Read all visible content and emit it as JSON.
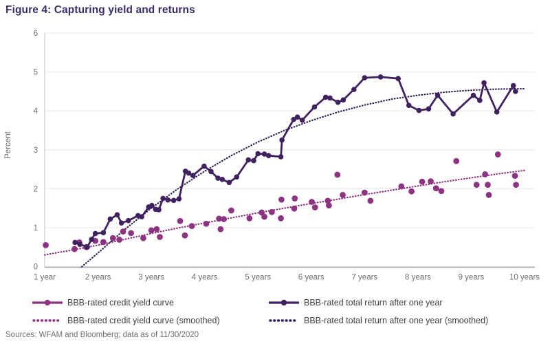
{
  "title": "Figure 4: Capturing yield and returns",
  "source": "Sources: WFAM and Bloomberg; data as of 11/30/2020",
  "colors": {
    "title": "#3b2b6b",
    "yield": "#8e3282",
    "total_return": "#40215f",
    "total_return_smoothed": "#2f1b58",
    "grid": "#e8e8e8",
    "axis_bottom": "#b3b3b3",
    "axis_left": "#d4d4d4",
    "tick_text": "#6e6e6e"
  },
  "chart_data": {
    "type": "scatter",
    "title": "Figure 4: Capturing yield and returns",
    "xlabel": "",
    "ylabel": "Percent",
    "ylim": [
      0,
      6
    ],
    "yticks": [
      0,
      1,
      2,
      3,
      4,
      5,
      6
    ],
    "xtick_values": [
      1,
      2,
      3,
      4,
      5,
      6,
      7,
      8,
      9,
      10
    ],
    "xtick_labels": [
      "1 year",
      "2 years",
      "3 years",
      "4 years",
      "5 years",
      "6 years",
      "7 years",
      "8 years",
      "9 years",
      "10 years"
    ],
    "grid": "horizontal",
    "legend_position": "bottom",
    "series": [
      {
        "name": "BBB-rated credit yield curve",
        "style": "scatter",
        "color": "#8e3282",
        "points": [
          [
            1.02,
            0.55
          ],
          [
            1.56,
            0.45
          ],
          [
            1.65,
            0.62
          ],
          [
            1.78,
            0.5
          ],
          [
            1.95,
            0.66
          ],
          [
            2.1,
            0.63
          ],
          [
            2.28,
            0.73
          ],
          [
            2.4,
            0.69
          ],
          [
            2.47,
            0.9
          ],
          [
            2.62,
            0.86
          ],
          [
            2.85,
            0.73
          ],
          [
            3.0,
            0.93
          ],
          [
            3.1,
            0.96
          ],
          [
            3.16,
            0.76
          ],
          [
            3.54,
            1.17
          ],
          [
            3.63,
            0.8
          ],
          [
            3.76,
            1.04
          ],
          [
            4.03,
            1.1
          ],
          [
            4.27,
            1.23
          ],
          [
            4.3,
            0.96
          ],
          [
            4.36,
            1.22
          ],
          [
            4.5,
            1.44
          ],
          [
            4.84,
            1.24
          ],
          [
            5.07,
            1.39
          ],
          [
            5.12,
            1.28
          ],
          [
            5.26,
            1.4
          ],
          [
            5.43,
            1.24
          ],
          [
            5.44,
            1.72
          ],
          [
            5.68,
            1.49
          ],
          [
            5.69,
            1.75
          ],
          [
            6.01,
            1.66
          ],
          [
            6.07,
            1.52
          ],
          [
            6.31,
            1.69
          ],
          [
            6.33,
            1.57
          ],
          [
            6.49,
            2.36
          ],
          [
            6.59,
            1.84
          ],
          [
            7.0,
            1.9
          ],
          [
            7.11,
            1.69
          ],
          [
            7.69,
            2.06
          ],
          [
            7.88,
            1.93
          ],
          [
            8.08,
            2.18
          ],
          [
            8.24,
            2.19
          ],
          [
            8.34,
            2.01
          ],
          [
            8.44,
            1.94
          ],
          [
            8.72,
            2.71
          ],
          [
            9.1,
            2.1
          ],
          [
            9.26,
            2.37
          ],
          [
            9.31,
            2.1
          ],
          [
            9.33,
            1.84
          ],
          [
            9.5,
            2.88
          ],
          [
            9.82,
            2.33
          ],
          [
            9.84,
            2.1
          ]
        ]
      },
      {
        "name": "BBB-rated total return after one year",
        "style": "line-markers",
        "color": "#40215f",
        "points": [
          [
            1.57,
            0.62
          ],
          [
            1.66,
            0.57
          ],
          [
            1.8,
            0.5
          ],
          [
            1.88,
            0.7
          ],
          [
            1.95,
            0.85
          ],
          [
            2.1,
            0.87
          ],
          [
            2.23,
            1.22
          ],
          [
            2.36,
            1.33
          ],
          [
            2.44,
            1.12
          ],
          [
            2.57,
            1.18
          ],
          [
            2.75,
            1.31
          ],
          [
            2.82,
            1.28
          ],
          [
            2.95,
            1.53
          ],
          [
            3.01,
            1.57
          ],
          [
            3.08,
            1.47
          ],
          [
            3.14,
            1.46
          ],
          [
            3.22,
            1.75
          ],
          [
            3.31,
            1.71
          ],
          [
            3.42,
            1.7
          ],
          [
            3.52,
            1.74
          ],
          [
            3.64,
            2.45
          ],
          [
            3.7,
            2.4
          ],
          [
            3.78,
            2.34
          ],
          [
            3.99,
            2.58
          ],
          [
            4.12,
            2.44
          ],
          [
            4.25,
            2.27
          ],
          [
            4.33,
            2.24
          ],
          [
            4.46,
            2.16
          ],
          [
            4.6,
            2.3
          ],
          [
            4.82,
            2.74
          ],
          [
            4.92,
            2.72
          ],
          [
            5.0,
            2.9
          ],
          [
            5.12,
            2.89
          ],
          [
            5.2,
            2.85
          ],
          [
            5.43,
            2.82
          ],
          [
            5.45,
            3.25
          ],
          [
            5.67,
            3.78
          ],
          [
            5.74,
            3.84
          ],
          [
            5.83,
            3.76
          ],
          [
            6.06,
            4.1
          ],
          [
            6.27,
            4.35
          ],
          [
            6.35,
            4.33
          ],
          [
            6.5,
            4.22
          ],
          [
            6.6,
            4.28
          ],
          [
            6.8,
            4.55
          ],
          [
            7.0,
            4.85
          ],
          [
            7.3,
            4.87
          ],
          [
            7.63,
            4.83
          ],
          [
            7.83,
            4.14
          ],
          [
            8.02,
            4.01
          ],
          [
            8.2,
            4.05
          ],
          [
            8.37,
            4.4
          ],
          [
            8.66,
            3.92
          ],
          [
            9.04,
            4.4
          ],
          [
            9.16,
            4.27
          ],
          [
            9.24,
            4.72
          ],
          [
            9.48,
            3.97
          ],
          [
            9.79,
            4.65
          ],
          [
            9.83,
            4.5
          ]
        ]
      },
      {
        "name": "BBB-rated credit yield curve (smoothed)",
        "style": "dotted",
        "color": "#8e3282",
        "points": [
          [
            1.0,
            0.3
          ],
          [
            1.5,
            0.42
          ],
          [
            2.0,
            0.55
          ],
          [
            2.5,
            0.7
          ],
          [
            3.0,
            0.85
          ],
          [
            3.5,
            0.99
          ],
          [
            4.0,
            1.12
          ],
          [
            4.5,
            1.25
          ],
          [
            5.0,
            1.38
          ],
          [
            5.5,
            1.5
          ],
          [
            6.0,
            1.62
          ],
          [
            6.5,
            1.73
          ],
          [
            7.0,
            1.85
          ],
          [
            7.5,
            1.96
          ],
          [
            8.0,
            2.07
          ],
          [
            8.5,
            2.18
          ],
          [
            9.0,
            2.28
          ],
          [
            9.5,
            2.38
          ],
          [
            10.0,
            2.47
          ]
        ]
      },
      {
        "name": "BBB-rated total return after one year (smoothed)",
        "style": "dotted",
        "color": "#2f1b58",
        "points": [
          [
            1.62,
            -0.1
          ],
          [
            1.7,
            0.0
          ],
          [
            2.0,
            0.35
          ],
          [
            2.5,
            0.95
          ],
          [
            3.0,
            1.5
          ],
          [
            3.5,
            2.0
          ],
          [
            4.0,
            2.45
          ],
          [
            4.5,
            2.85
          ],
          [
            5.0,
            3.2
          ],
          [
            5.5,
            3.5
          ],
          [
            6.0,
            3.75
          ],
          [
            6.5,
            3.97
          ],
          [
            7.0,
            4.15
          ],
          [
            7.5,
            4.3
          ],
          [
            8.0,
            4.4
          ],
          [
            8.5,
            4.48
          ],
          [
            9.0,
            4.53
          ],
          [
            9.5,
            4.56
          ],
          [
            10.0,
            4.57
          ]
        ]
      }
    ]
  }
}
